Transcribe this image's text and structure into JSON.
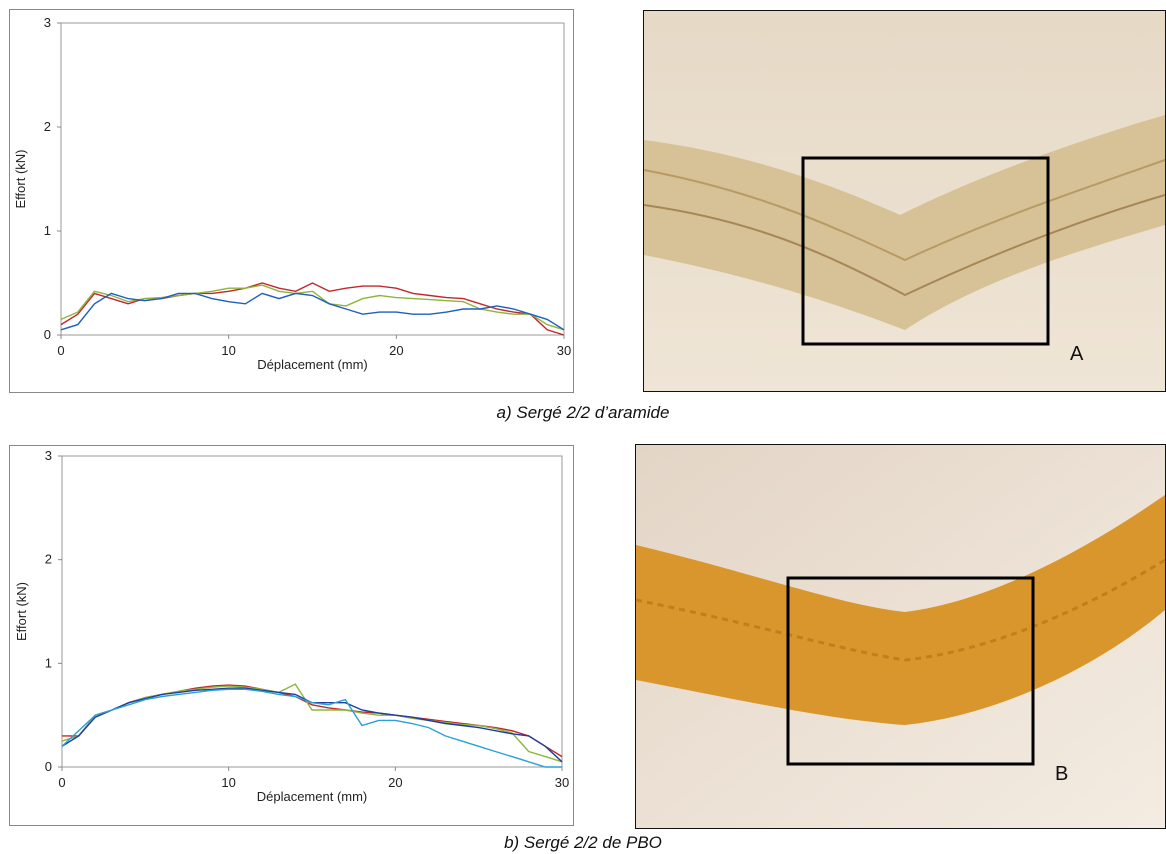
{
  "chart_data": [
    {
      "type": "line",
      "xlabel": "Déplacement (mm)",
      "ylabel": "Effort (kN)",
      "xlim": [
        0,
        30
      ],
      "ylim": [
        0,
        3
      ],
      "xticks": [
        0,
        10,
        20,
        30
      ],
      "yticks": [
        0,
        1,
        2,
        3
      ],
      "grid": false,
      "x": [
        0,
        1,
        2,
        3,
        4,
        5,
        6,
        7,
        8,
        9,
        10,
        11,
        12,
        13,
        14,
        15,
        16,
        17,
        18,
        19,
        20,
        21,
        22,
        23,
        24,
        25,
        26,
        27,
        28,
        29,
        30
      ],
      "series": [
        {
          "color": "#c0282d",
          "values": [
            0.1,
            0.2,
            0.4,
            0.35,
            0.3,
            0.35,
            0.35,
            0.38,
            0.4,
            0.4,
            0.42,
            0.45,
            0.5,
            0.45,
            0.42,
            0.5,
            0.42,
            0.45,
            0.47,
            0.47,
            0.45,
            0.4,
            0.38,
            0.36,
            0.35,
            0.3,
            0.25,
            0.22,
            0.2,
            0.05,
            0.0
          ]
        },
        {
          "color": "#8db53c",
          "values": [
            0.15,
            0.22,
            0.42,
            0.38,
            0.32,
            0.35,
            0.36,
            0.38,
            0.4,
            0.42,
            0.45,
            0.45,
            0.48,
            0.42,
            0.4,
            0.42,
            0.3,
            0.28,
            0.35,
            0.38,
            0.36,
            0.35,
            0.34,
            0.33,
            0.32,
            0.25,
            0.22,
            0.2,
            0.2,
            0.1,
            0.05
          ]
        },
        {
          "color": "#1f5fbf",
          "values": [
            0.05,
            0.1,
            0.3,
            0.4,
            0.35,
            0.33,
            0.35,
            0.4,
            0.4,
            0.35,
            0.32,
            0.3,
            0.4,
            0.35,
            0.4,
            0.38,
            0.3,
            0.25,
            0.2,
            0.22,
            0.22,
            0.2,
            0.2,
            0.22,
            0.25,
            0.25,
            0.28,
            0.25,
            0.2,
            0.15,
            0.05
          ]
        }
      ]
    },
    {
      "type": "line",
      "xlabel": "Déplacement (mm)",
      "ylabel": "Effort (kN)",
      "xlim": [
        0,
        30
      ],
      "ylim": [
        0,
        3
      ],
      "xticks": [
        0,
        10,
        20,
        30
      ],
      "yticks": [
        0,
        1,
        2,
        3
      ],
      "grid": false,
      "x": [
        0,
        1,
        2,
        3,
        4,
        5,
        6,
        7,
        8,
        9,
        10,
        11,
        12,
        13,
        14,
        15,
        16,
        17,
        18,
        19,
        20,
        21,
        22,
        23,
        24,
        25,
        26,
        27,
        28,
        29,
        30
      ],
      "series": [
        {
          "color": "#c0282d",
          "values": [
            0.3,
            0.3,
            0.5,
            0.55,
            0.62,
            0.67,
            0.7,
            0.73,
            0.76,
            0.78,
            0.79,
            0.78,
            0.75,
            0.72,
            0.68,
            0.6,
            0.57,
            0.55,
            0.53,
            0.52,
            0.5,
            0.48,
            0.46,
            0.44,
            0.42,
            0.4,
            0.38,
            0.35,
            0.3,
            0.2,
            0.1
          ]
        },
        {
          "color": "#8db53c",
          "values": [
            0.25,
            0.3,
            0.5,
            0.55,
            0.62,
            0.67,
            0.7,
            0.73,
            0.75,
            0.77,
            0.78,
            0.77,
            0.75,
            0.72,
            0.8,
            0.55,
            0.55,
            0.55,
            0.52,
            0.5,
            0.5,
            0.47,
            0.45,
            0.43,
            0.41,
            0.4,
            0.37,
            0.33,
            0.15,
            0.1,
            0.05
          ]
        },
        {
          "color": "#1f3f9f",
          "values": [
            0.2,
            0.3,
            0.48,
            0.55,
            0.62,
            0.66,
            0.7,
            0.72,
            0.74,
            0.75,
            0.76,
            0.76,
            0.74,
            0.72,
            0.7,
            0.62,
            0.62,
            0.62,
            0.55,
            0.52,
            0.5,
            0.48,
            0.45,
            0.42,
            0.4,
            0.38,
            0.35,
            0.32,
            0.3,
            0.2,
            0.05
          ]
        },
        {
          "color": "#2aa0d8",
          "values": [
            0.2,
            0.35,
            0.5,
            0.55,
            0.6,
            0.65,
            0.68,
            0.7,
            0.72,
            0.74,
            0.75,
            0.75,
            0.73,
            0.7,
            0.68,
            0.62,
            0.6,
            0.65,
            0.4,
            0.45,
            0.45,
            0.42,
            0.38,
            0.3,
            0.25,
            0.2,
            0.15,
            0.1,
            0.05,
            0.0,
            0.0
          ]
        }
      ]
    }
  ],
  "figure": {
    "panels": [
      {
        "caption": "a) Sergé 2/2 d’aramide",
        "photo_label": "A"
      },
      {
        "caption": "b) Sergé 2/2 de PBO",
        "photo_label": "B"
      }
    ]
  }
}
